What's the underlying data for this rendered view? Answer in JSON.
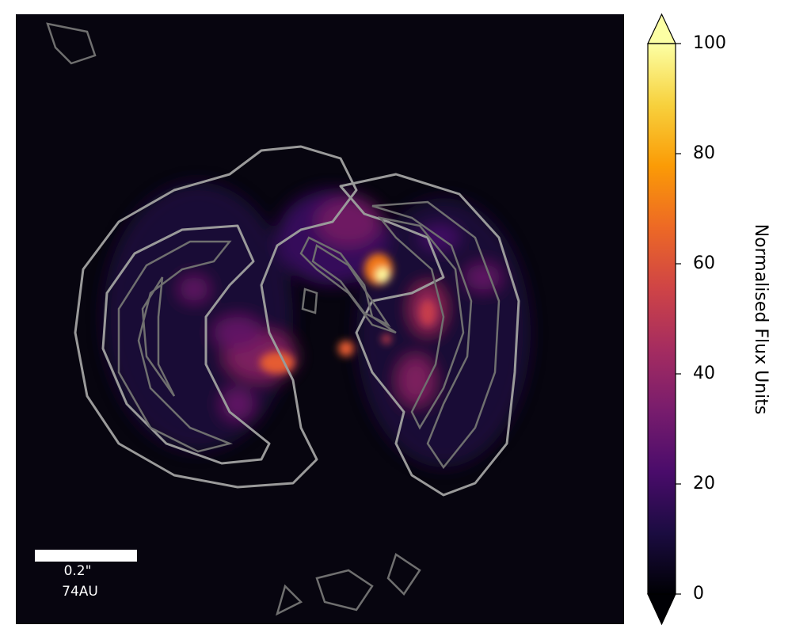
{
  "chart_data": {
    "type": "heatmap",
    "colormap": "inferno",
    "extend": "both",
    "ylabel": "Normalised Flux Units",
    "ylim": [
      0,
      100
    ],
    "yticks": [
      0,
      20,
      40,
      60,
      80,
      100
    ],
    "scale_bar": {
      "angular": "0.2\"",
      "physical": "74AU"
    }
  }
}
